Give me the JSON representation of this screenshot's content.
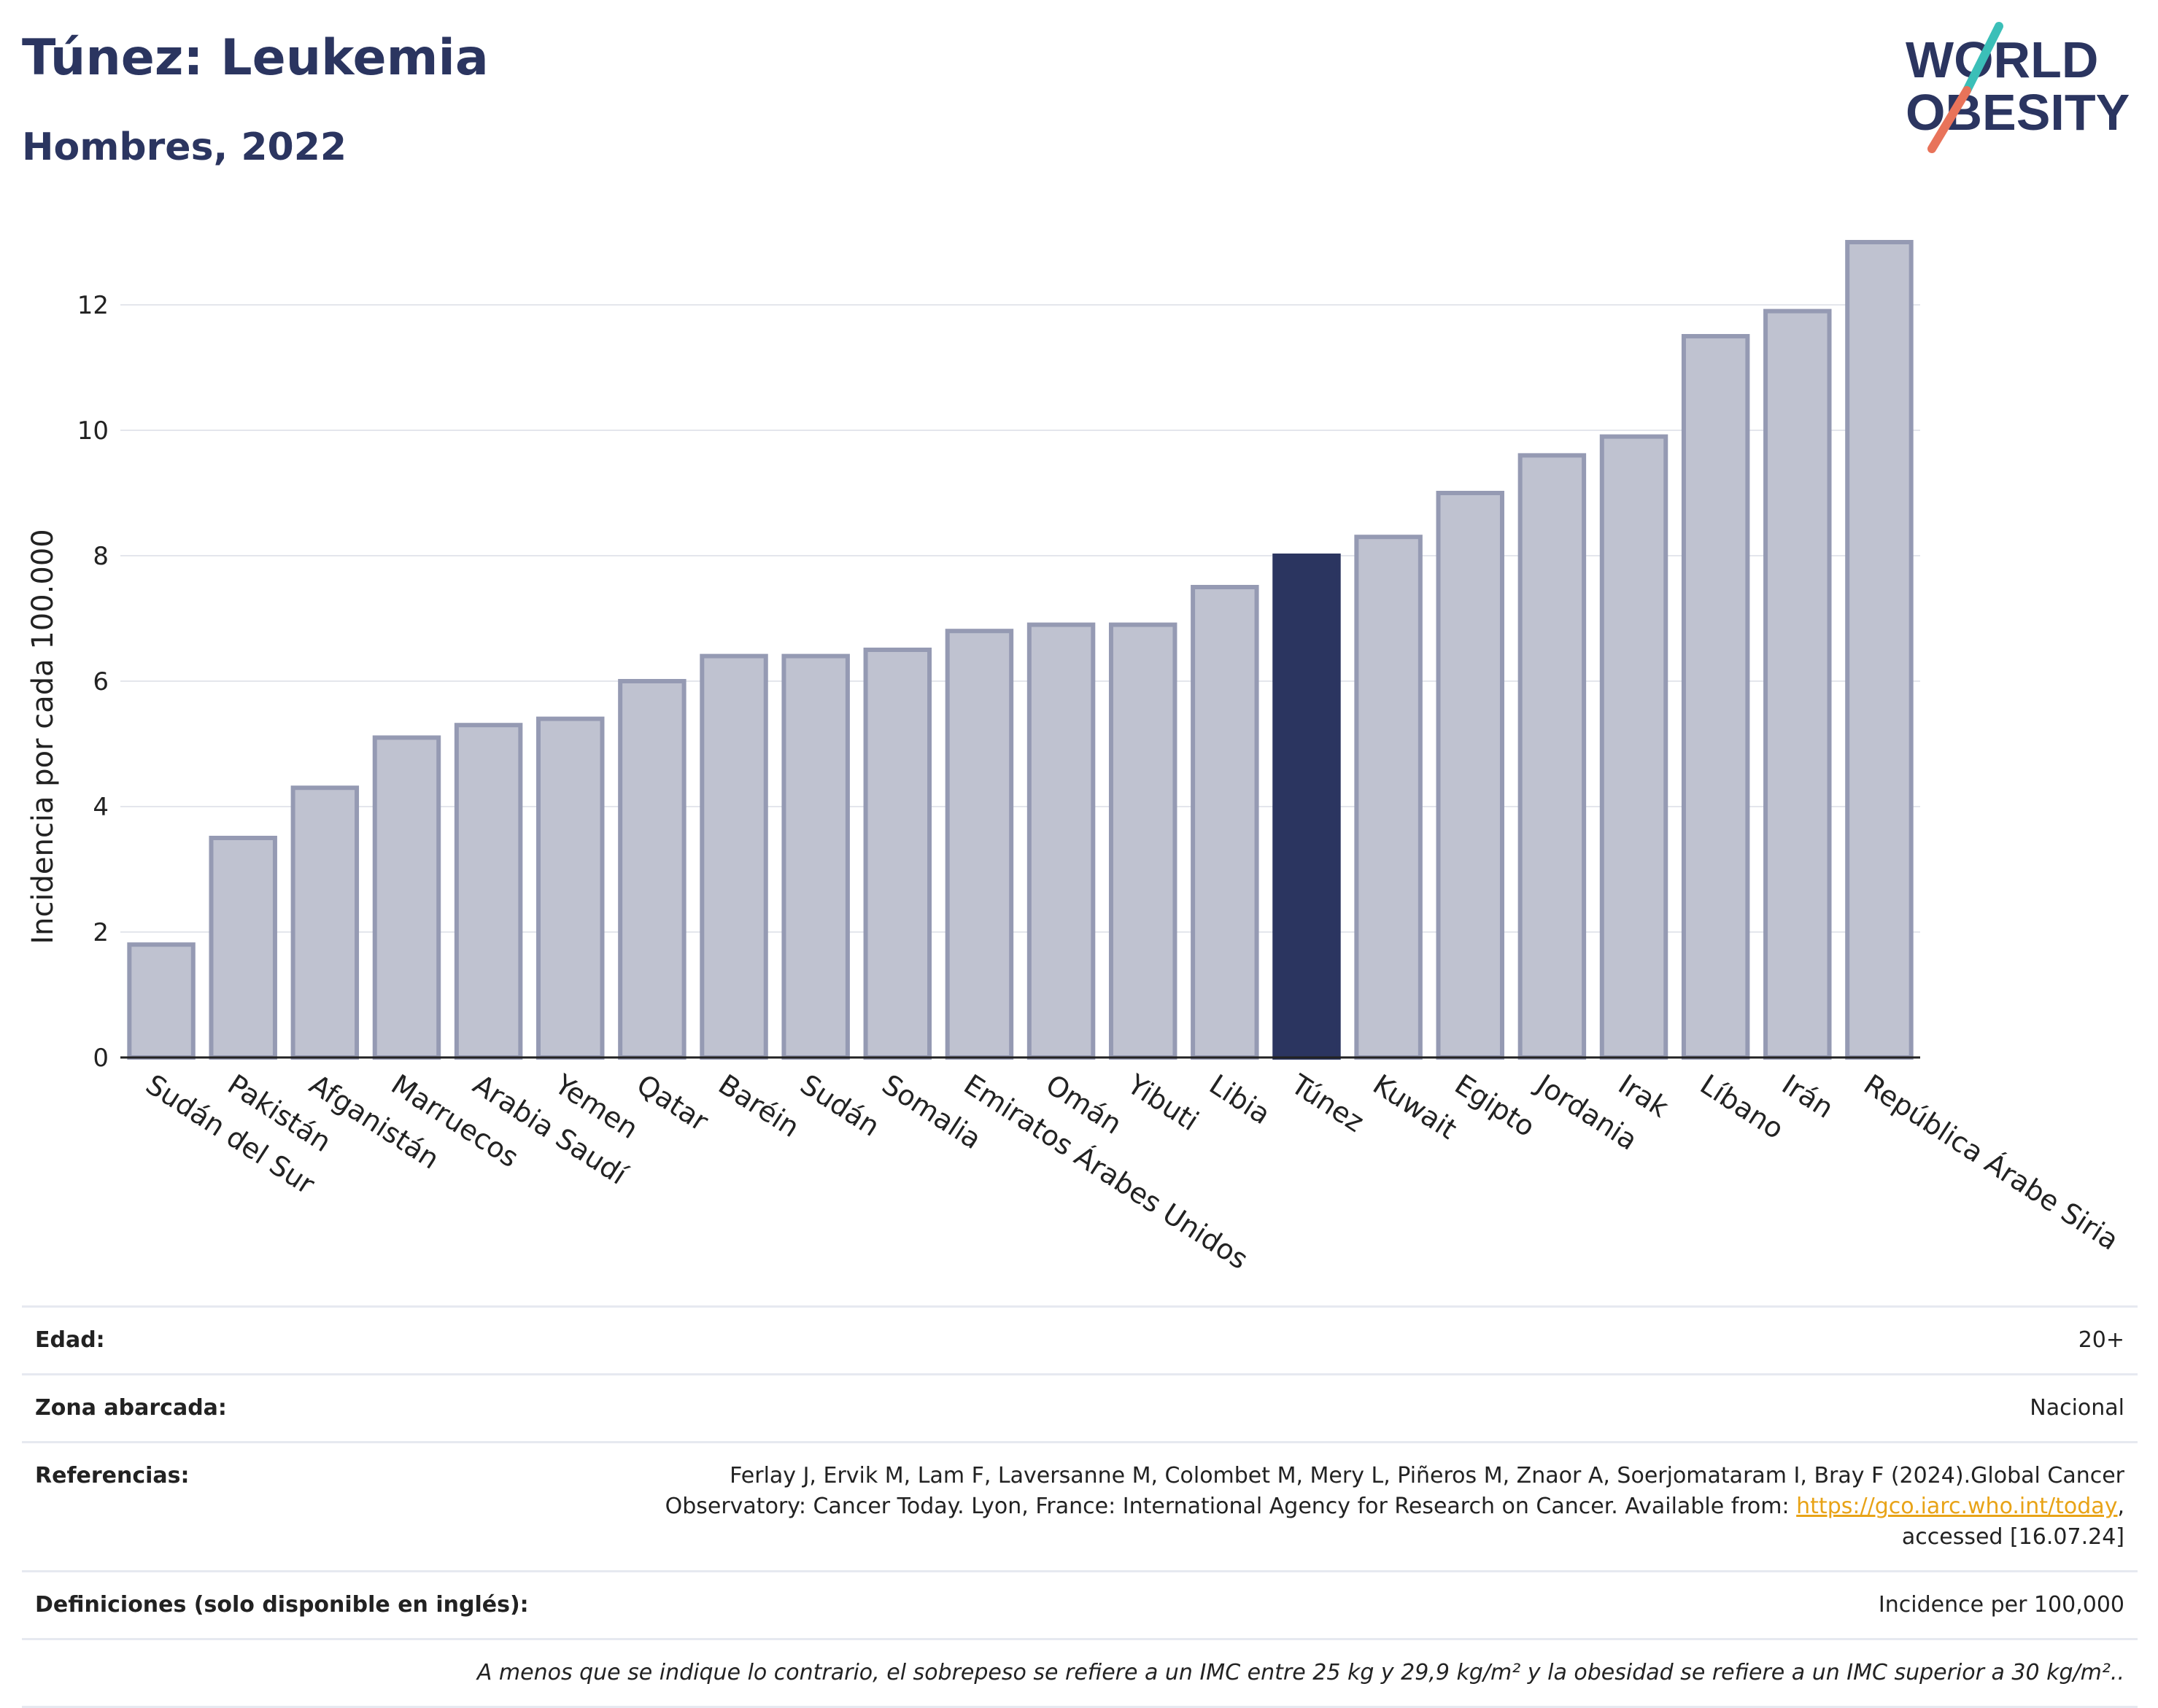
{
  "header": {
    "title": "Túnez: Leukemia",
    "subtitle": "Hombres, 2022"
  },
  "logo": {
    "line1": "WORLD",
    "line2": "OBESITY",
    "colors": {
      "text": "#2b3560",
      "slash_teal": "#3bbfb8",
      "slash_coral": "#e8735a"
    }
  },
  "chart_data": {
    "type": "bar",
    "ylabel": "Incidencia por cada 100.000",
    "ylim": [
      0,
      13.5
    ],
    "yticks": [
      0,
      2,
      4,
      6,
      8,
      10,
      12
    ],
    "grid": true,
    "highlight": "Túnez",
    "colors": {
      "bar": "#bfc2d0",
      "bar_border": "#959ab3",
      "highlight": "#2b3560"
    },
    "categories": [
      "Sudán del Sur",
      "Pakistán",
      "Afganistán",
      "Marruecos",
      "Arabia Saudí",
      "Yemen",
      "Qatar",
      "Baréin",
      "Sudán",
      "Somalia",
      "Emiratos Árabes Unidos",
      "Omán",
      "Yibuti",
      "Libia",
      "Túnez",
      "Kuwait",
      "Egipto",
      "Jordania",
      "Irak",
      "Líbano",
      "Irán",
      "República Árabe Siria"
    ],
    "values": [
      1.8,
      3.5,
      4.3,
      5.1,
      5.3,
      5.4,
      6.0,
      6.4,
      6.4,
      6.5,
      6.8,
      6.9,
      6.9,
      7.5,
      8.0,
      8.3,
      9.0,
      9.6,
      9.9,
      11.5,
      11.9,
      13.0
    ]
  },
  "info": {
    "rows": [
      {
        "key": "Edad:",
        "value": "20+"
      },
      {
        "key": "Zona abarcada:",
        "value": "Nacional"
      },
      {
        "key": "Referencias:",
        "value_line1": "Ferlay J, Ervik M, Lam F, Laversanne M, Colombet M, Mery L, Piñeros M, Znaor A, Soerjomataram I, Bray F (2024).Global Cancer",
        "value_line2_pre": "Observatory: Cancer Today. Lyon, France: International Agency for Research on Cancer. Available from: ",
        "link": "https://gco.iarc.who.int/today",
        "value_line2_post": ",",
        "value_line3": "accessed [16.07.24]"
      },
      {
        "key": "Definiciones (solo disponible en inglés):",
        "value": "Incidence per 100,000"
      }
    ],
    "note": "A menos que se indique lo contrario, el sobrepeso se refiere a un IMC entre 25 kg y 29,9 kg/m² y la obesidad se refiere a un IMC superior a 30 kg/m².."
  }
}
